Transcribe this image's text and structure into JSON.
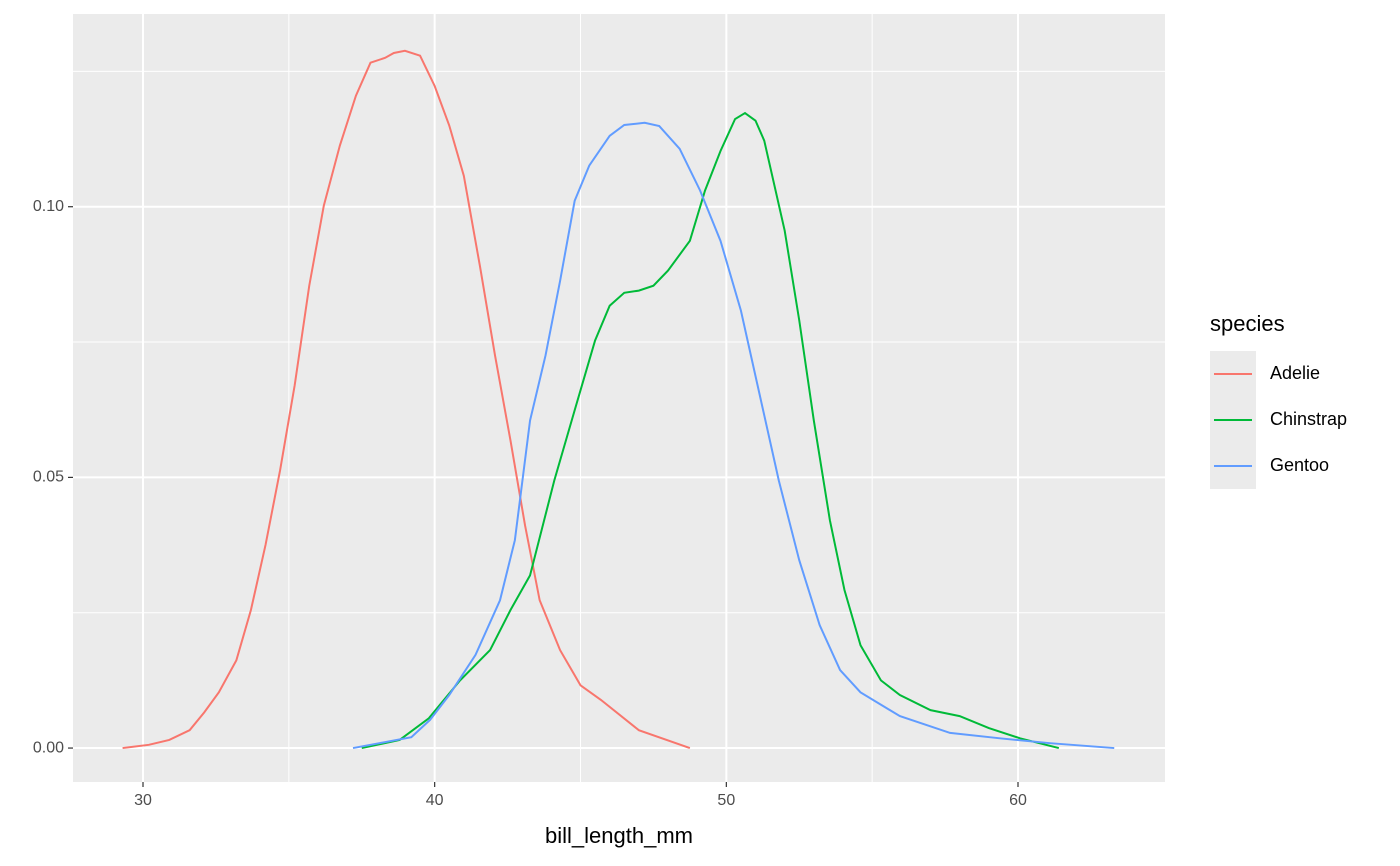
{
  "chart_data": {
    "type": "line",
    "x_label": "bill_length_mm",
    "legend_title": "species",
    "legend_position": "right",
    "grid": true,
    "xlim": [
      27.6,
      65.04
    ],
    "ylim": [
      -0.00627,
      0.1356
    ],
    "xticks": [
      30,
      40,
      50,
      60
    ],
    "x_minor_grid": [
      35,
      45,
      55
    ],
    "yticks": [
      {
        "value": 0,
        "label": "0.00"
      },
      {
        "value": 0.05,
        "label": "0.05"
      },
      {
        "value": 0.1,
        "label": "0.10"
      }
    ],
    "y_minor_grid": [
      0.025,
      0.075,
      0.125
    ],
    "series": [
      {
        "name": "Adelie",
        "color": "#F8766D",
        "x": [
          29.3,
          30.2,
          30.9,
          31.6,
          32.1,
          32.6,
          33.2,
          33.7,
          34.2,
          34.7,
          35.2,
          35.7,
          36.2,
          36.75,
          37.3,
          37.8,
          38.3,
          38.6,
          38.98,
          39.5,
          40.0,
          40.5,
          41.0,
          41.55,
          42.07,
          42.6,
          43.1,
          43.6,
          44.3,
          45.0,
          45.7,
          47.0,
          48.75
        ],
        "values": [
          0,
          0.0006,
          0.0015,
          0.0033,
          0.0066,
          0.0103,
          0.0162,
          0.0255,
          0.0375,
          0.0513,
          0.067,
          0.0854,
          0.1002,
          0.1113,
          0.1205,
          0.1266,
          0.1275,
          0.1284,
          0.1288,
          0.1279,
          0.1223,
          0.115,
          0.1057,
          0.0891,
          0.0725,
          0.0568,
          0.0411,
          0.0273,
          0.0181,
          0.0116,
          0.0089,
          0.0033,
          0
        ]
      },
      {
        "name": "Chinstrap",
        "color": "#00BA38",
        "x": [
          37.5,
          38.8,
          39.8,
          40.87,
          41.9,
          42.6,
          43.27,
          44.1,
          44.8,
          45.5,
          46.0,
          46.5,
          47.0,
          47.5,
          48.0,
          48.75,
          49.27,
          49.8,
          50.3,
          50.64,
          51.0,
          51.3,
          52.0,
          52.5,
          53.0,
          53.55,
          54.05,
          54.6,
          55.3,
          55.95,
          57.0,
          58.0,
          59.0,
          60.07,
          61.4
        ],
        "values": [
          0,
          0.0015,
          0.0055,
          0.0125,
          0.0181,
          0.0255,
          0.0319,
          0.0494,
          0.0624,
          0.0753,
          0.0817,
          0.0841,
          0.0845,
          0.0854,
          0.0882,
          0.0937,
          0.103,
          0.1103,
          0.1162,
          0.1173,
          0.1159,
          0.1122,
          0.0956,
          0.079,
          0.0605,
          0.0421,
          0.0292,
          0.019,
          0.0125,
          0.0098,
          0.007,
          0.0059,
          0.0037,
          0.0018,
          0
        ]
      },
      {
        "name": "Gentoo",
        "color": "#619CFF",
        "x": [
          37.2,
          38.1,
          39.2,
          39.84,
          40.5,
          41.4,
          42.24,
          42.75,
          43.27,
          43.8,
          44.3,
          44.8,
          45.3,
          46.0,
          46.5,
          47.2,
          47.7,
          48.4,
          49.1,
          49.8,
          50.5,
          51.15,
          51.8,
          52.5,
          53.2,
          53.9,
          54.6,
          55.95,
          57.67,
          59.38,
          61.1,
          63.3
        ],
        "values": [
          0,
          0.0009,
          0.002,
          0.0052,
          0.0098,
          0.0172,
          0.0273,
          0.0384,
          0.0605,
          0.0725,
          0.0863,
          0.1011,
          0.1076,
          0.1131,
          0.1151,
          0.1155,
          0.1149,
          0.1107,
          0.103,
          0.0937,
          0.0808,
          0.0651,
          0.0494,
          0.0347,
          0.0227,
          0.0144,
          0.0103,
          0.0059,
          0.0028,
          0.0018,
          0.0009,
          0
        ]
      }
    ]
  }
}
